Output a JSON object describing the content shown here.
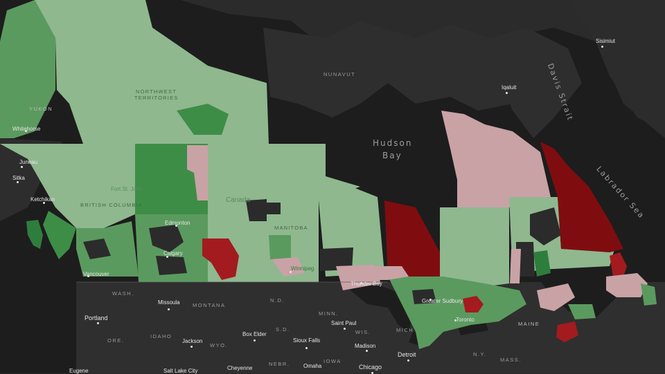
{
  "map": {
    "colors": {
      "ocean": "#1d1d1d",
      "land": "#2b2b2b",
      "light_green": "#8fb88f",
      "green": "#5b9a5f",
      "dark_green": "#2f7d3c",
      "pink": "#c9a2a6",
      "red": "#a31b1e",
      "dark_red": "#7f0d10"
    },
    "water_labels": {
      "hudson_bay_1": "Hudson",
      "hudson_bay_2": "Bay",
      "davis_strait": "Davis Strait",
      "labrador_sea": "Labrador Sea"
    },
    "province_labels": {
      "nunavut": "NUNAVUT",
      "nwt_1": "NORTHWEST",
      "nwt_2": "TERRITORIES",
      "yukon": "YUKON",
      "bc": "BRITISH COLUMBIA",
      "manitoba": "MANITOBA",
      "canada": "Canada"
    },
    "state_labels": {
      "wash": "WASH.",
      "montana": "MONTANA",
      "nd": "N.D.",
      "sd": "S.D.",
      "minn": "MINN.",
      "wis": "WIS.",
      "mich": "MICH.",
      "idaho": "IDAHO",
      "wyo": "WYO.",
      "ore": "ORE.",
      "nebr": "NEBR.",
      "iowa": "IOWA",
      "maine": "MAINE",
      "ny": "N.Y.",
      "mass": "MASS."
    },
    "cities": {
      "whitehorse": "Whitehorse",
      "juneau": "Juneau",
      "sitka": "Sitka",
      "ketchikan": "Ketchikan",
      "iqaluit": "Iqaluit",
      "sisimiut": "Sisimiut",
      "edmonton": "Edmonton",
      "calgary": "Calgary",
      "vancouver": "Vancouver",
      "fort_st_john": "Fort St. John",
      "winnipeg": "Winnipeg",
      "thunder_bay": "Thunder Bay",
      "greater_sudbury": "Greater Sudbury",
      "missoula": "Missoula",
      "portland": "Portland",
      "jackson": "Jackson",
      "box_elder": "Box Elder",
      "sioux_falls": "Sioux Falls",
      "saint_paul": "Saint Paul",
      "madison": "Madison",
      "detroit": "Detroit",
      "chicago": "Chicago",
      "cheyenne": "Cheyenne",
      "omaha": "Omaha",
      "salt_lake_city": "Salt Lake City",
      "eugene": "Eugene",
      "toronto": "Toronto"
    }
  }
}
